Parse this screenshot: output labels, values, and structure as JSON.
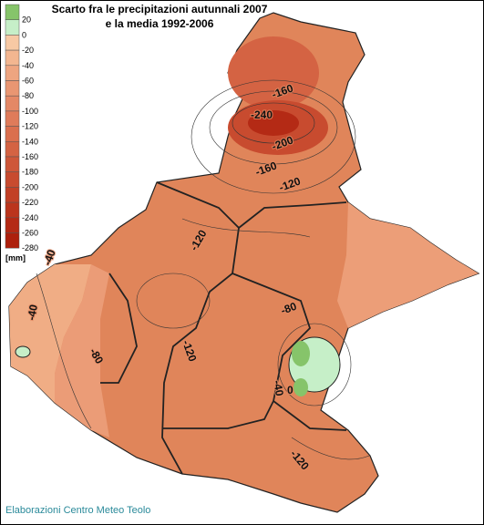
{
  "header": {
    "title_lines": [
      "Scarto fra le precipitazioni autunnali 2007",
      "e la media 1992-2006"
    ]
  },
  "legend": {
    "unit": "[mm]",
    "items": [
      {
        "label": "20",
        "color": "#86c46a"
      },
      {
        "label": "0",
        "color": "#c6efc8"
      },
      {
        "label": "-20",
        "color": "#f7c9a4"
      },
      {
        "label": "-40",
        "color": "#f3b690"
      },
      {
        "label": "-60",
        "color": "#eea580"
      },
      {
        "label": "-80",
        "color": "#e99672"
      },
      {
        "label": "-100",
        "color": "#e48866"
      },
      {
        "label": "-120",
        "color": "#df7b5a"
      },
      {
        "label": "-140",
        "color": "#da6f4e"
      },
      {
        "label": "-160",
        "color": "#d46343"
      },
      {
        "label": "-180",
        "color": "#ce5739"
      },
      {
        "label": "-200",
        "color": "#c84b2f"
      },
      {
        "label": "-220",
        "color": "#c24026"
      },
      {
        "label": "-240",
        "color": "#bb351d"
      },
      {
        "label": "-260",
        "color": "#b42a15"
      },
      {
        "label": "-280",
        "color": "#ad200d"
      }
    ]
  },
  "contour_labels": [
    "-160",
    "-240",
    "-200",
    "-160",
    "-120",
    "-120",
    "-120",
    "-80",
    "-40",
    "-40",
    "-80",
    "-40",
    "0",
    "-120"
  ],
  "credit": "Elaborazioni Centro Meteo Teolo"
}
